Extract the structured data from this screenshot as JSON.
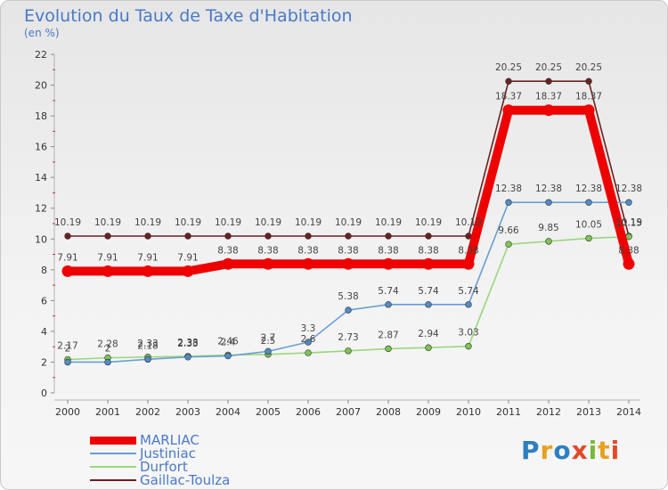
{
  "title": "Evolution du Taux de Taxe d'Habitation",
  "unit_label": "(en %)",
  "logo": {
    "text": "Proxiti",
    "colors": [
      "#2d7fc0",
      "#e8a020",
      "#2d7fc0",
      "#e04a2a",
      "#79b83a",
      "#e8a020",
      "#e04a2a"
    ]
  },
  "chart_data": {
    "type": "line",
    "title": "Evolution du Taux de Taxe d'Habitation",
    "ylabel": "(en %)",
    "xlabel": "",
    "x": [
      "2000",
      "2001",
      "2002",
      "2003",
      "2004",
      "2005",
      "2006",
      "2007",
      "2008",
      "2009",
      "2010",
      "2011",
      "2012",
      "2013",
      "2014"
    ],
    "ylim": [
      0,
      22
    ],
    "yticks": [
      0,
      2,
      4,
      6,
      8,
      10,
      12,
      14,
      16,
      18,
      20,
      22
    ],
    "grid": false,
    "legend_position": "bottom-left",
    "series": [
      {
        "name": "Gaillac-Toulza",
        "color": "#6b2020",
        "marker": "#6b2020",
        "values": [
          10.19,
          10.19,
          10.19,
          10.19,
          10.19,
          10.19,
          10.19,
          10.19,
          10.19,
          10.19,
          10.19,
          20.25,
          20.25,
          20.25,
          10.19
        ],
        "labels": [
          "10.19",
          "10.19",
          "10.19",
          "10.19",
          "10.19",
          "10.19",
          "10.19",
          "10.19",
          "10.19",
          "10.19",
          "10.19",
          "20.25",
          "20.25",
          "20.25",
          "10.19"
        ]
      },
      {
        "name": "Durfort",
        "color": "#9ad67e",
        "marker": "#7cc552",
        "values": [
          2.17,
          2.28,
          2.33,
          2.38,
          2.46,
          2.5,
          2.6,
          2.73,
          2.87,
          2.94,
          3.03,
          9.66,
          9.85,
          10.05,
          10.15
        ],
        "labels": [
          "2.17",
          "2.28",
          "2.33",
          "2.38",
          "2.46",
          "2.5",
          "2.6",
          "2.73",
          "2.87",
          "2.94",
          "3.03",
          "9.66",
          "9.85",
          "10.05",
          "10.15"
        ]
      },
      {
        "name": "Justiniac",
        "color": "#6a9fd0",
        "marker": "#4f8cc9",
        "values": [
          2,
          2,
          2.18,
          2.33,
          2.4,
          2.7,
          3.3,
          5.38,
          5.74,
          5.74,
          5.74,
          12.38,
          12.38,
          12.38,
          12.38
        ],
        "labels": [
          "2",
          "2",
          "2.18",
          "2.33",
          "2.4",
          "2.7",
          "3.3",
          "5.38",
          "5.74",
          "5.74",
          "5.74",
          "12.38",
          "12.38",
          "12.38",
          "12.38"
        ]
      },
      {
        "name": "MARLIAC",
        "color": "#ee0000",
        "marker": "#ee0000",
        "values": [
          7.91,
          7.91,
          7.91,
          7.91,
          8.38,
          8.38,
          8.38,
          8.38,
          8.38,
          8.38,
          8.38,
          18.37,
          18.37,
          18.37,
          8.38
        ],
        "labels": [
          "7.91",
          "7.91",
          "7.91",
          "7.91",
          "8.38",
          "8.38",
          "8.38",
          "8.38",
          "8.38",
          "8.38",
          "8.38",
          "18.37",
          "18.37",
          "18.37",
          "8.38"
        ]
      }
    ]
  }
}
